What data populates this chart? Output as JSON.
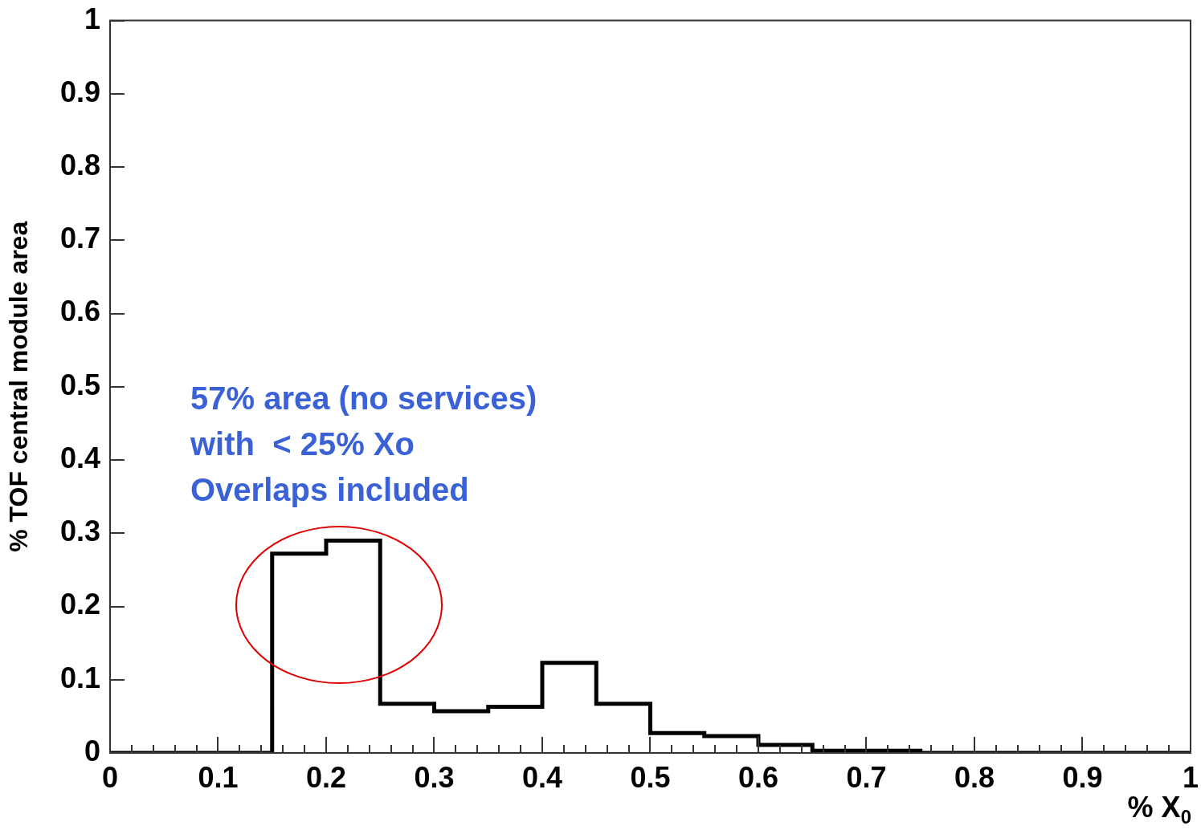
{
  "chart_data": {
    "type": "histogram",
    "ylabel": "% TOF central module area",
    "xlabel": "% X$_{0}$",
    "annotations": [
      "57% area (no services)",
      "with  < 25% Xo",
      "Overlaps included"
    ],
    "bins": [
      0,
      0.05,
      0.1,
      0.15,
      0.2,
      0.25,
      0.3,
      0.35,
      0.4,
      0.45,
      0.5,
      0.55,
      0.6,
      0.65,
      0.7,
      0.75,
      0.8,
      0.85,
      0.9,
      0.95,
      1
    ],
    "values": [
      0,
      0,
      0,
      0.272,
      0.29,
      0.067,
      0.057,
      0.063,
      0.123,
      0.067,
      0.027,
      0.023,
      0.011,
      0.003,
      0.003,
      0,
      0,
      0,
      0,
      0
    ],
    "color": "#000000",
    "xlim": [
      0,
      1
    ],
    "ylim": [
      0,
      1
    ],
    "xticks": [
      0,
      {
        "value": 0.02,
        "label": null
      },
      {
        "value": 0.04,
        "label": null
      },
      {
        "value": 0.06,
        "label": null
      },
      {
        "value": 0.08,
        "label": null
      },
      0.1,
      {
        "value": 0.12,
        "label": null
      },
      {
        "value": 0.14,
        "label": null
      },
      {
        "value": 0.16,
        "label": null
      },
      {
        "value": 0.18,
        "label": null
      },
      0.2,
      {
        "value": 0.22,
        "label": null
      },
      {
        "value": 0.24,
        "label": null
      },
      {
        "value": 0.26,
        "label": null
      },
      {
        "value": 0.28,
        "label": null
      },
      0.3,
      {
        "value": 0.32,
        "label": null
      },
      {
        "value": 0.34,
        "label": null
      },
      {
        "value": 0.36,
        "label": null
      },
      {
        "value": 0.38,
        "label": null
      },
      0.4,
      {
        "value": 0.42,
        "label": null
      },
      {
        "value": 0.44,
        "label": null
      },
      {
        "value": 0.46,
        "label": null
      },
      {
        "value": 0.48,
        "label": null
      },
      0.5,
      {
        "value": 0.52,
        "label": null
      },
      {
        "value": 0.54,
        "label": null
      },
      {
        "value": 0.56,
        "label": null
      },
      {
        "value": 0.58,
        "label": null
      },
      0.6,
      {
        "value": 0.62,
        "label": null
      },
      {
        "value": 0.64,
        "label": null
      },
      {
        "value": 0.66,
        "label": null
      },
      {
        "value": 0.68,
        "label": null
      },
      0.7,
      {
        "value": 0.72,
        "label": null
      },
      {
        "value": 0.74,
        "label": null
      },
      {
        "value": 0.76,
        "label": null
      },
      {
        "value": 0.78,
        "label": null
      },
      0.8,
      {
        "value": 0.82,
        "label": null
      },
      {
        "value": 0.84,
        "label": null
      },
      {
        "value": 0.86,
        "label": null
      },
      {
        "value": 0.88,
        "label": null
      },
      0.9,
      {
        "value": 0.92,
        "label": null
      },
      {
        "value": 0.94,
        "label": null
      },
      {
        "value": 0.96,
        "label": null
      },
      {
        "value": 0.98,
        "label": null
      },
      1
    ],
    "yticks": [
      0,
      0.1,
      0.2,
      0.3,
      0.4,
      0.5,
      0.6,
      0.7,
      0.8,
      0.9,
      1
    ]
  }
}
